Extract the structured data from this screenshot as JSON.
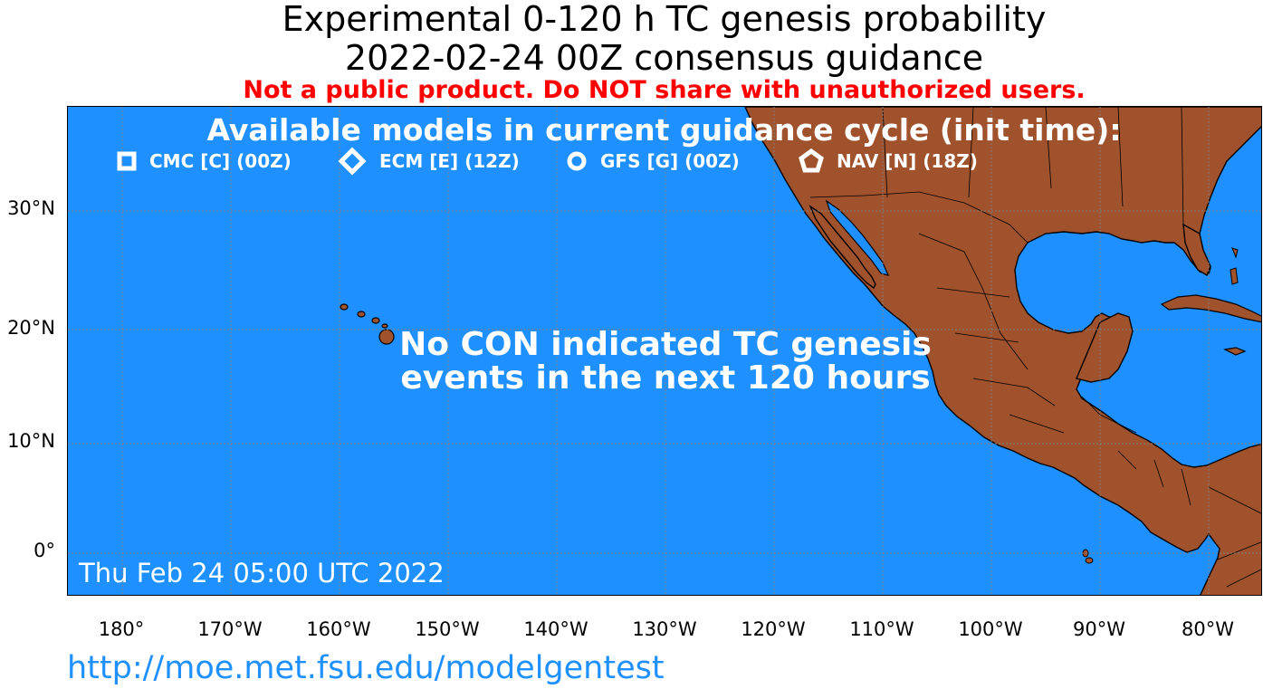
{
  "title_line1": "Experimental 0-120 h TC genesis probability",
  "title_line2": "2022-02-24 00Z consensus guidance",
  "warning": "Not a public product. Do NOT share with unauthorized users.",
  "legend": {
    "title": "Available models in current guidance cycle (init time):",
    "items": [
      {
        "label": "CMC [C] (00Z)",
        "marker": "square"
      },
      {
        "label": "ECM [E] (12Z)",
        "marker": "diamond"
      },
      {
        "label": "GFS [G] (00Z)",
        "marker": "circle"
      },
      {
        "label": "NAV [N] (18Z)",
        "marker": "pentagon"
      }
    ]
  },
  "message_line1": "No CON indicated TC genesis",
  "message_line2": "events in the next 120 hours",
  "timestamp": "Thu Feb 24 05:00 UTC 2022",
  "url": "http://moe.met.fsu.edu/modelgentest",
  "map": {
    "lat_labels": [
      "30°N",
      "20°N",
      "10°N",
      "0°"
    ],
    "lon_labels": [
      "180°",
      "170°W",
      "160°W",
      "150°W",
      "140°W",
      "130°W",
      "120°W",
      "110°W",
      "100°W",
      "90°W",
      "80°W"
    ],
    "ocean_color": "#1e90ff",
    "land_color": "#a0522d",
    "gridline_color": "#808080"
  }
}
